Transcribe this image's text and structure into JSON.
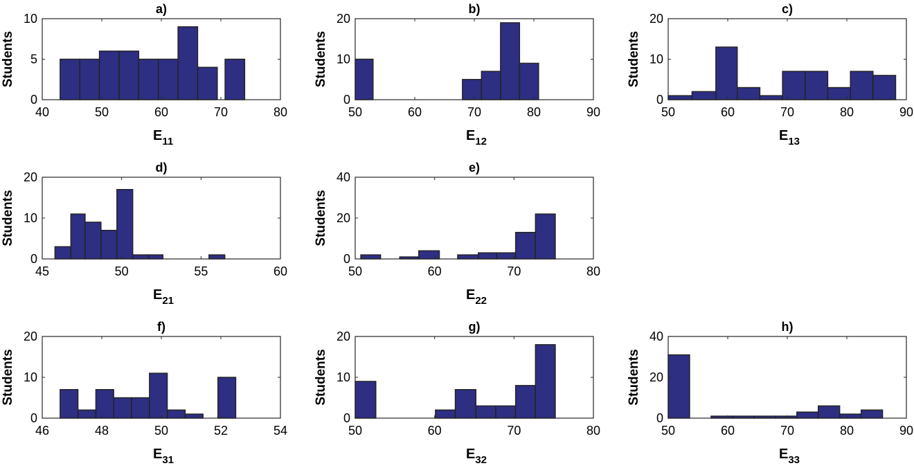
{
  "figure": {
    "background": "#ffffff",
    "bar_color": "#2e2e82",
    "edge_color": "#222222"
  },
  "chart_data": [
    {
      "type": "bar",
      "panel": "a",
      "title": "a)",
      "ylabel": "Students",
      "xlabel": "E",
      "xlabel_sub": "11",
      "xlim": [
        40,
        80
      ],
      "ylim": [
        0,
        10
      ],
      "xticks": [
        "40",
        "50",
        "60",
        "70",
        "80"
      ],
      "yticks": [
        "0",
        "5",
        "10"
      ],
      "bins": [
        [
          43,
          46.3,
          5
        ],
        [
          46.3,
          49.6,
          5
        ],
        [
          49.6,
          52.9,
          6
        ],
        [
          52.9,
          56.2,
          6
        ],
        [
          56.2,
          59.5,
          5
        ],
        [
          59.5,
          62.8,
          5
        ],
        [
          62.8,
          66.1,
          9
        ],
        [
          66.1,
          69.4,
          4
        ],
        [
          70.7,
          74.0,
          5
        ]
      ]
    },
    {
      "type": "bar",
      "panel": "b",
      "title": "b)",
      "ylabel": "Students",
      "xlabel": "E",
      "xlabel_sub": "12",
      "xlim": [
        50,
        90
      ],
      "ylim": [
        0,
        20
      ],
      "xticks": [
        "50",
        "60",
        "70",
        "80",
        "90"
      ],
      "yticks": [
        "0",
        "10",
        "20"
      ],
      "bins": [
        [
          50,
          53,
          10
        ],
        [
          68,
          71.2,
          5
        ],
        [
          71.2,
          74.4,
          7
        ],
        [
          74.4,
          77.6,
          19
        ],
        [
          77.6,
          80.8,
          9
        ]
      ]
    },
    {
      "type": "bar",
      "panel": "c",
      "title": "c)",
      "ylabel": "Students",
      "xlabel": "E",
      "xlabel_sub": "13",
      "xlim": [
        50,
        90
      ],
      "ylim": [
        0,
        20
      ],
      "xticks": [
        "50",
        "60",
        "70",
        "80",
        "90"
      ],
      "yticks": [
        "0",
        "10",
        "20"
      ],
      "bins": [
        [
          50,
          54,
          1
        ],
        [
          54,
          58,
          2
        ],
        [
          58,
          61.6,
          13
        ],
        [
          61.6,
          65.4,
          3
        ],
        [
          65.4,
          69.2,
          1
        ],
        [
          69.2,
          73,
          7
        ],
        [
          73,
          76.8,
          7
        ],
        [
          76.8,
          80.6,
          3
        ],
        [
          80.6,
          84.4,
          7
        ],
        [
          84.4,
          88.2,
          6
        ]
      ]
    },
    {
      "type": "bar",
      "panel": "d",
      "title": "d)",
      "ylabel": "Students",
      "xlabel": "E",
      "xlabel_sub": "21",
      "xlim": [
        45,
        60
      ],
      "ylim": [
        0,
        20
      ],
      "xticks": [
        "45",
        "50",
        "55",
        "60"
      ],
      "yticks": [
        "0",
        "10",
        "20"
      ],
      "bins": [
        [
          45.8,
          46.8,
          3
        ],
        [
          46.8,
          47.7,
          11
        ],
        [
          47.7,
          48.7,
          9
        ],
        [
          48.7,
          49.7,
          7
        ],
        [
          49.7,
          50.7,
          17
        ],
        [
          50.7,
          51.7,
          1
        ],
        [
          51.7,
          52.6,
          1
        ],
        [
          55.5,
          56.5,
          1
        ]
      ]
    },
    {
      "type": "bar",
      "panel": "e",
      "title": "e)",
      "ylabel": "Students",
      "xlabel": "E",
      "xlabel_sub": "22",
      "xlim": [
        50,
        80
      ],
      "ylim": [
        0,
        40
      ],
      "xticks": [
        "50",
        "60",
        "70",
        "80"
      ],
      "yticks": [
        "0",
        "20",
        "40"
      ],
      "bins": [
        [
          50.7,
          53.2,
          2
        ],
        [
          55.6,
          58,
          1
        ],
        [
          58,
          60.6,
          4
        ],
        [
          62.9,
          65.5,
          2
        ],
        [
          65.5,
          67.8,
          3
        ],
        [
          67.8,
          70.2,
          3
        ],
        [
          70.2,
          72.7,
          13
        ],
        [
          72.7,
          75.2,
          22
        ]
      ]
    },
    {
      "type": "bar",
      "panel": "f",
      "title": "f)",
      "ylabel": "Students",
      "xlabel": "E",
      "xlabel_sub": "31",
      "xlim": [
        46,
        54
      ],
      "ylim": [
        0,
        20
      ],
      "xticks": [
        "46",
        "48",
        "50",
        "52",
        "54"
      ],
      "yticks": [
        "0",
        "10",
        "20"
      ],
      "bins": [
        [
          46.6,
          47.2,
          7
        ],
        [
          47.2,
          47.8,
          2
        ],
        [
          47.8,
          48.4,
          7
        ],
        [
          48.4,
          49.0,
          5
        ],
        [
          49.0,
          49.6,
          5
        ],
        [
          49.6,
          50.2,
          11
        ],
        [
          50.2,
          50.8,
          2
        ],
        [
          50.8,
          51.4,
          1
        ],
        [
          51.9,
          52.5,
          10
        ]
      ]
    },
    {
      "type": "bar",
      "panel": "g",
      "title": "g)",
      "ylabel": "Students",
      "xlabel": "E",
      "xlabel_sub": "32",
      "xlim": [
        50,
        80
      ],
      "ylim": [
        0,
        20
      ],
      "xticks": [
        "50",
        "60",
        "70",
        "80"
      ],
      "yticks": [
        "0",
        "10",
        "20"
      ],
      "bins": [
        [
          50,
          52.6,
          9
        ],
        [
          60.1,
          62.6,
          2
        ],
        [
          62.6,
          65.2,
          7
        ],
        [
          65.2,
          67.7,
          3
        ],
        [
          67.7,
          70.2,
          3
        ],
        [
          70.2,
          72.7,
          8
        ],
        [
          72.7,
          75.2,
          18
        ]
      ]
    },
    {
      "type": "bar",
      "panel": "h",
      "title": "h)",
      "ylabel": "Students",
      "xlabel": "E",
      "xlabel_sub": "33",
      "xlim": [
        50,
        90
      ],
      "ylim": [
        0,
        40
      ],
      "xticks": [
        "50",
        "60",
        "70",
        "80",
        "90"
      ],
      "yticks": [
        "0",
        "20",
        "40"
      ],
      "bins": [
        [
          50,
          53.6,
          31
        ],
        [
          57.2,
          60.8,
          1
        ],
        [
          60.8,
          64.4,
          1
        ],
        [
          64.4,
          68.0,
          1
        ],
        [
          68.0,
          71.6,
          1
        ],
        [
          71.6,
          75.2,
          3
        ],
        [
          75.2,
          78.8,
          6
        ],
        [
          78.8,
          82.4,
          2
        ],
        [
          82.4,
          86.0,
          4
        ]
      ]
    }
  ]
}
